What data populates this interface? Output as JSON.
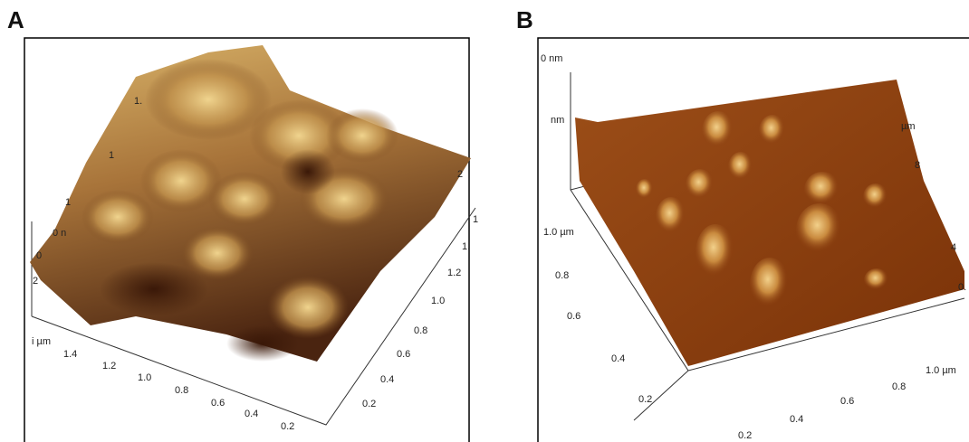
{
  "panels": [
    {
      "label": "A",
      "axis_labels": [
        "i µm",
        "1.4",
        "1.2",
        "1.0",
        "0.8",
        "0.6",
        "0.4",
        "0.2",
        "0.2",
        "0.4",
        "0.6",
        "0.8",
        "1.0",
        "1.2",
        "1.",
        "1",
        "2",
        "0",
        "2",
        "0 n",
        "1",
        "1",
        "1."
      ]
    },
    {
      "label": "B",
      "axis_labels": [
        "0 nm",
        "nm",
        "µm",
        "8",
        "4",
        "0.",
        "1.0 µm",
        "0.8",
        "0.6",
        "0.4",
        "0.2",
        "1.0 µm",
        "0.8",
        "0.6",
        "0.4",
        "0.2"
      ]
    }
  ]
}
